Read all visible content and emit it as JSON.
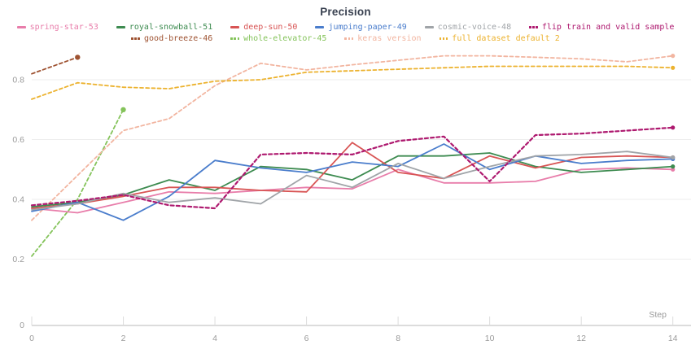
{
  "theme": {
    "background": "#ffffff",
    "grid_color": "#ededed",
    "axis_color": "#dcdcdc",
    "tick_text_color": "#9b9b9b",
    "title_text_color": "#394150"
  },
  "chart_data": {
    "type": "line",
    "title": "Precision",
    "xlabel": "Step",
    "ylabel": "",
    "x_range": [
      0,
      14
    ],
    "y_range": [
      0,
      0.9
    ],
    "x_ticks": [
      0,
      2,
      4,
      6,
      8,
      10,
      12,
      14
    ],
    "y_ticks": [
      {
        "label": "0",
        "value": 0
      },
      {
        "label": "0.2",
        "value": 0.2
      },
      {
        "label": "0.4",
        "value": 0.4
      },
      {
        "label": "0.6",
        "value": 0.6
      },
      {
        "label": "0.8",
        "value": 0.8
      }
    ],
    "grid": "horizontal-only",
    "legend_position": "top",
    "x": [
      0,
      1,
      2,
      3,
      4,
      5,
      6,
      7,
      8,
      9,
      10,
      11,
      12,
      13,
      14
    ],
    "draw_order": [
      6,
      7,
      8,
      9,
      0,
      1,
      2,
      3,
      4,
      5
    ],
    "series": [
      {
        "id": "spring-star-53",
        "name": "spring-star-53",
        "color": "#e87daa",
        "dashed": false,
        "legend_row": 1,
        "values": [
          0.37,
          0.355,
          0.39,
          0.425,
          0.42,
          0.43,
          0.44,
          0.435,
          0.5,
          0.455,
          0.455,
          0.46,
          0.5,
          0.505,
          0.5
        ]
      },
      {
        "id": "royal-snowball-51",
        "name": "royal-snowball-51",
        "color": "#3d8b50",
        "dashed": false,
        "legend_row": 1,
        "values": [
          0.375,
          0.39,
          0.415,
          0.465,
          0.43,
          0.51,
          0.5,
          0.465,
          0.545,
          0.545,
          0.555,
          0.51,
          0.49,
          0.5,
          0.51
        ]
      },
      {
        "id": "deep-sun-50",
        "name": "deep-sun-50",
        "color": "#d85454",
        "dashed": false,
        "legend_row": 1,
        "values": [
          0.37,
          0.385,
          0.41,
          0.44,
          0.44,
          0.43,
          0.425,
          0.59,
          0.49,
          0.47,
          0.545,
          0.505,
          0.54,
          0.545,
          0.54
        ]
      },
      {
        "id": "jumping-paper-49",
        "name": "jumping-paper-49",
        "color": "#4a7dcc",
        "dashed": false,
        "legend_row": 1,
        "values": [
          0.36,
          0.39,
          0.33,
          0.41,
          0.53,
          0.505,
          0.49,
          0.525,
          0.51,
          0.585,
          0.5,
          0.545,
          0.52,
          0.53,
          0.535
        ]
      },
      {
        "id": "cosmic-voice-48",
        "name": "cosmic-voice-48",
        "color": "#a0a4a8",
        "dashed": false,
        "legend_row": 1,
        "values": [
          0.365,
          0.385,
          0.42,
          0.39,
          0.405,
          0.385,
          0.48,
          0.44,
          0.52,
          0.47,
          0.51,
          0.545,
          0.55,
          0.56,
          0.54
        ]
      },
      {
        "id": "flip-train-and-valid-sample",
        "name": "flip train and valid sample",
        "color": "#ae196f",
        "dashed": true,
        "stroke_width": 2.2,
        "legend_row": 1,
        "values": [
          0.38,
          0.395,
          0.415,
          0.38,
          0.37,
          0.55,
          0.555,
          0.55,
          0.595,
          0.61,
          0.46,
          0.615,
          0.62,
          0.63,
          0.64
        ]
      },
      {
        "id": "good-breeze-46",
        "name": "good-breeze-46",
        "color": "#9e5231",
        "dashed": true,
        "legend_row": 2,
        "values": [
          0.82,
          0.875
        ]
      },
      {
        "id": "whole-elevator-45",
        "name": "whole-elevator-45",
        "color": "#84c35a",
        "dashed": true,
        "legend_row": 2,
        "values": [
          0.21,
          0.4,
          0.7
        ]
      },
      {
        "id": "keras-version",
        "name": "keras version",
        "color": "#f2b5a0",
        "dashed": true,
        "legend_row": 2,
        "values": [
          0.33,
          0.48,
          0.63,
          0.67,
          0.78,
          0.855,
          0.833,
          0.85,
          0.865,
          0.88,
          0.88,
          0.875,
          0.87,
          0.86,
          0.88
        ]
      },
      {
        "id": "full-dataset-default-2",
        "name": "full dataset default 2",
        "color": "#ecb22e",
        "dashed": true,
        "legend_row": 2,
        "values": [
          0.735,
          0.79,
          0.775,
          0.77,
          0.795,
          0.8,
          0.825,
          0.83,
          0.835,
          0.84,
          0.845,
          0.845,
          0.845,
          0.845,
          0.84
        ]
      }
    ]
  }
}
